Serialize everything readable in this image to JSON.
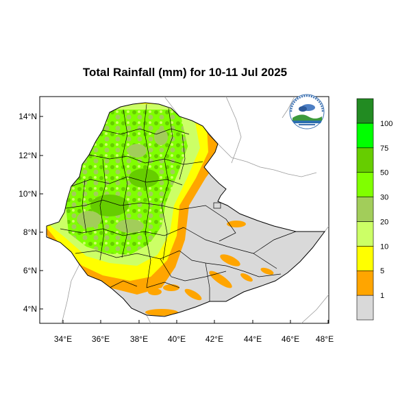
{
  "title": "Total Rainfall (mm) for 10-11 Jul 2025",
  "map": {
    "lon_ticks": [
      "34°E",
      "36°E",
      "38°E",
      "40°E",
      "42°E",
      "44°E",
      "46°E",
      "48°E"
    ],
    "lat_ticks": [
      "14°N",
      "12°N",
      "10°N",
      "8°N",
      "6°N",
      "4°N"
    ]
  },
  "legend": {
    "labels": [
      "1",
      "5",
      "10",
      "20",
      "30",
      "50",
      "75",
      "100"
    ],
    "colors": [
      "#d9d9d9",
      "#ffa500",
      "#ffff00",
      "#ccff66",
      "#a2cd5a",
      "#80ff00",
      "#66cd00",
      "#00ff00",
      "#228b22"
    ]
  },
  "logo": {
    "text": "ETHIOPIAN METEOROLOGY INSTITUTE"
  }
}
